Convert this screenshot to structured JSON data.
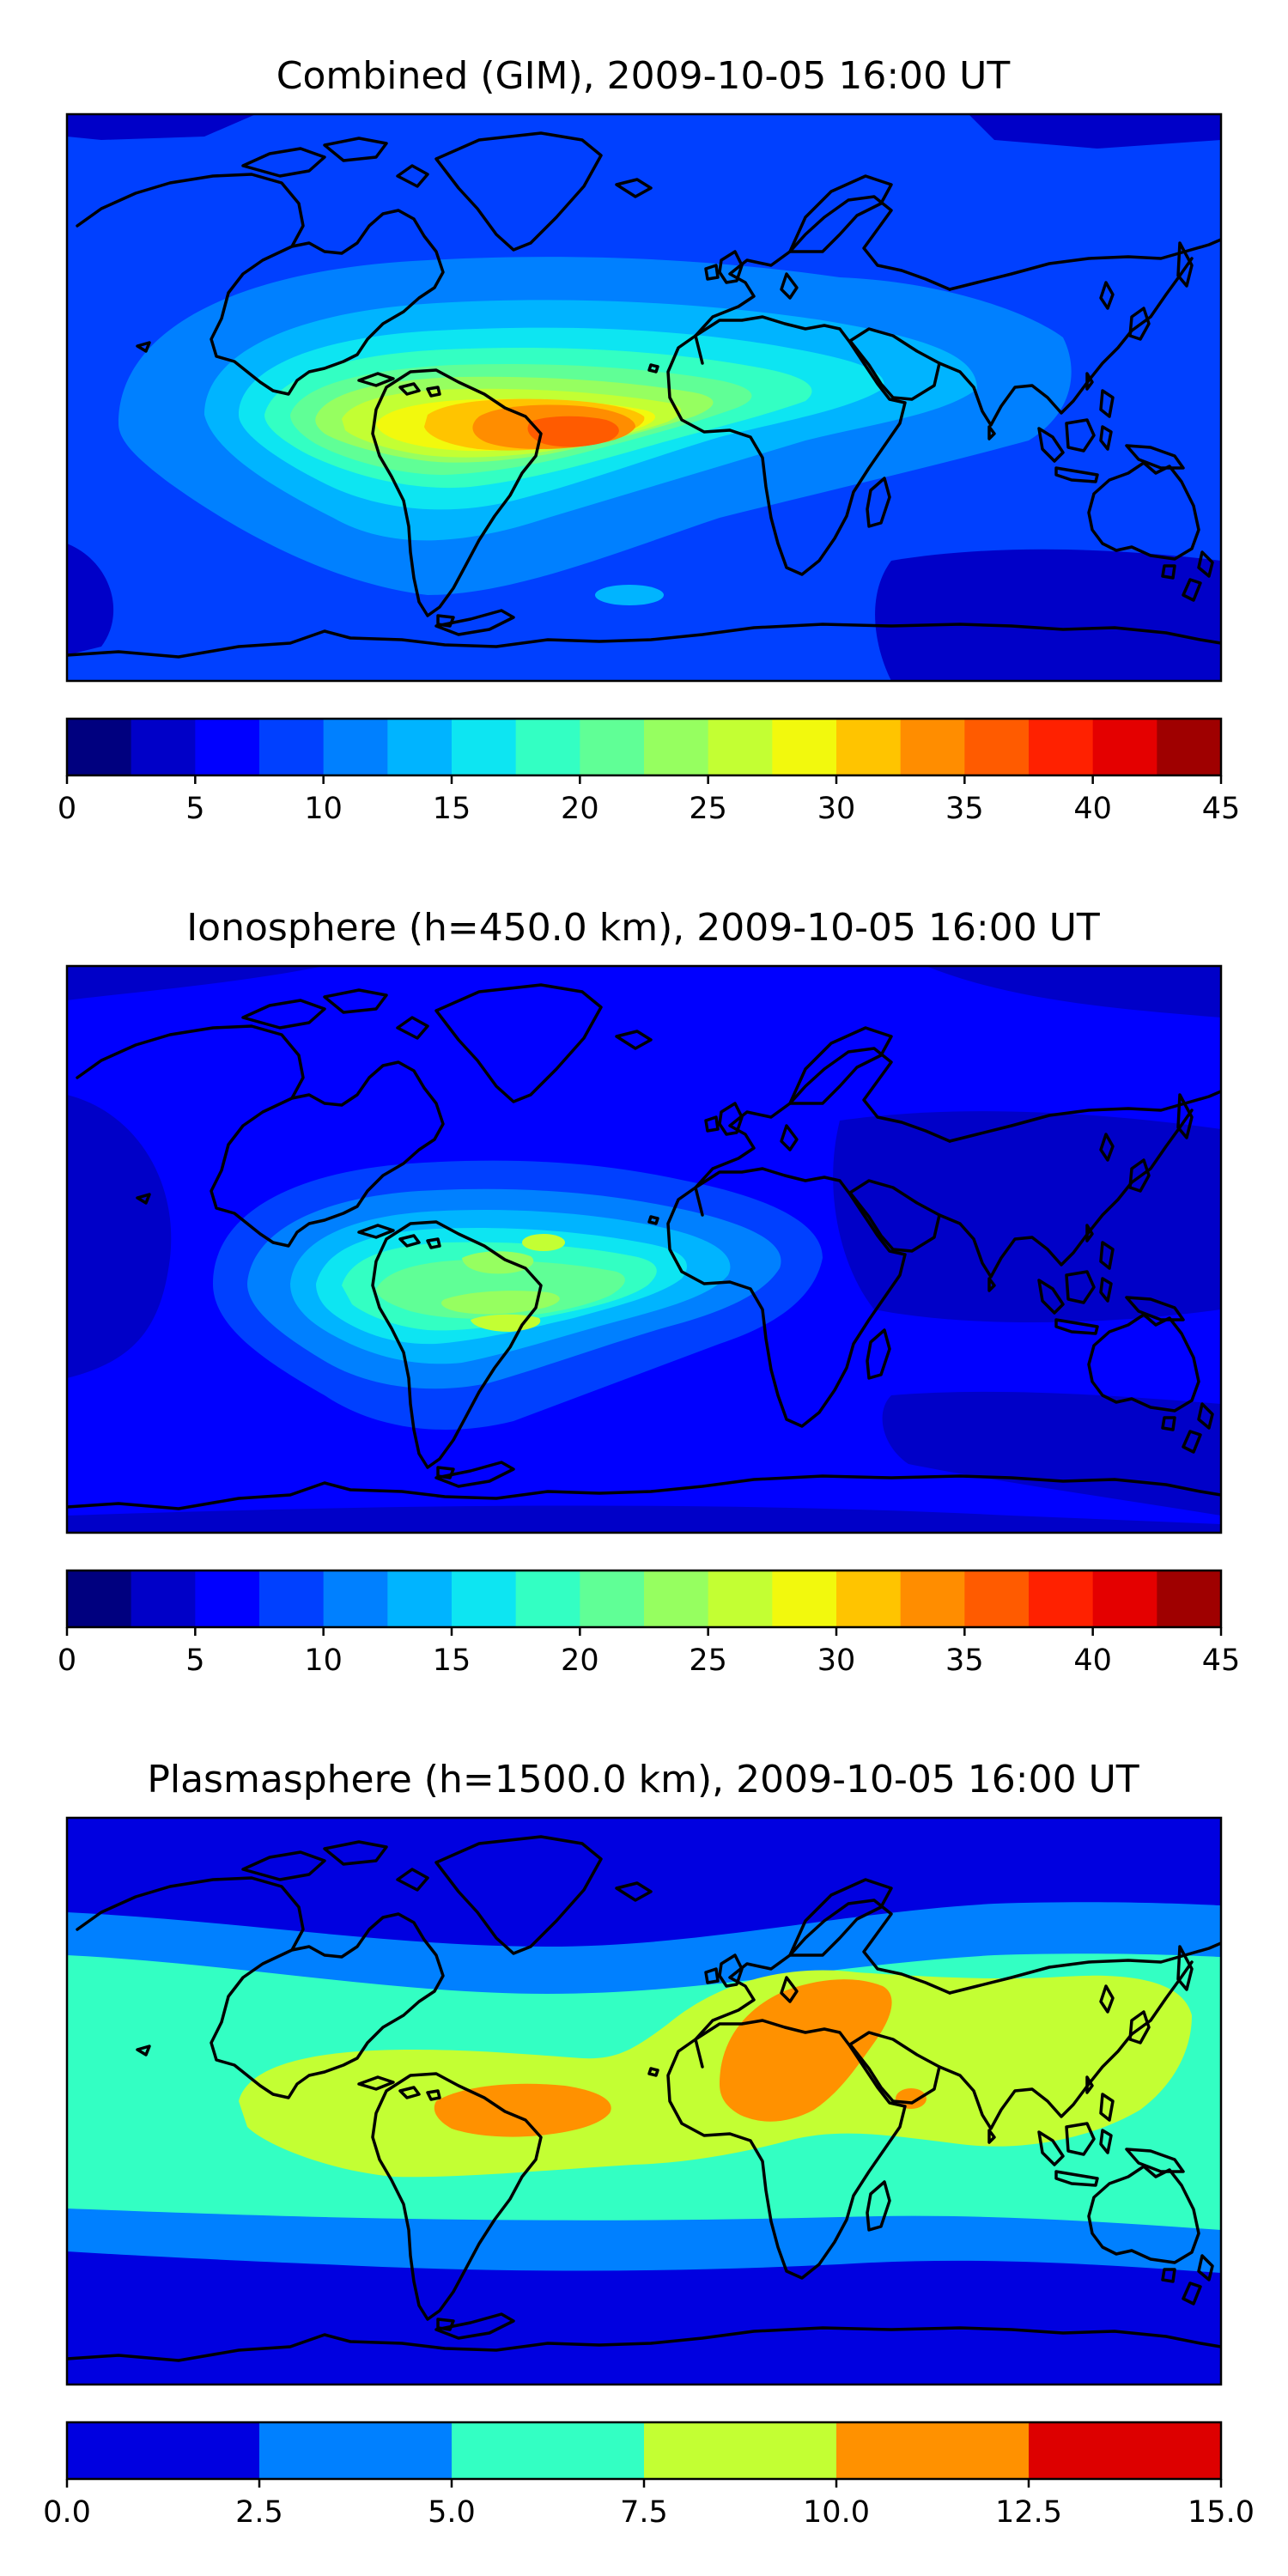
{
  "figure": {
    "panels": [
      {
        "title": "Combined (GIM), 2009-10-05 16:00 UT",
        "colorbar": {
          "levels": [
            0,
            2.5,
            5,
            7.5,
            10,
            12.5,
            15,
            17.5,
            20,
            22.5,
            25,
            27.5,
            30,
            32.5,
            35,
            37.5,
            40,
            42.5,
            45
          ],
          "colors": [
            "#00007f",
            "#0000c8",
            "#0000ff",
            "#0040ff",
            "#0080ff",
            "#00b4ff",
            "#0de5f2",
            "#33ffc3",
            "#60ff96",
            "#96ff60",
            "#c3ff33",
            "#f2f90d",
            "#ffc400",
            "#ff8d00",
            "#ff5b00",
            "#ff2100",
            "#e40000",
            "#9f0000"
          ],
          "tick_labels": [
            "0",
            "5",
            "10",
            "15",
            "20",
            "25",
            "30",
            "35",
            "40",
            "45"
          ]
        }
      },
      {
        "title": "Ionosphere  (h=450.0 km), 2009-10-05 16:00 UT",
        "colorbar": {
          "levels": [
            0,
            2.5,
            5,
            7.5,
            10,
            12.5,
            15,
            17.5,
            20,
            22.5,
            25,
            27.5,
            30,
            32.5,
            35,
            37.5,
            40,
            42.5,
            45
          ],
          "colors": [
            "#00007f",
            "#0000c8",
            "#0000ff",
            "#0040ff",
            "#0080ff",
            "#00b4ff",
            "#0de5f2",
            "#33ffc3",
            "#60ff96",
            "#96ff60",
            "#c3ff33",
            "#f2f90d",
            "#ffc400",
            "#ff8d00",
            "#ff5b00",
            "#ff2100",
            "#e40000",
            "#9f0000"
          ],
          "tick_labels": [
            "0",
            "5",
            "10",
            "15",
            "20",
            "25",
            "30",
            "35",
            "40",
            "45"
          ]
        }
      },
      {
        "title": "Plasmasphere (h=1500.0 km), 2009-10-05 16:00 UT",
        "colorbar": {
          "levels": [
            0,
            2.5,
            5,
            7.5,
            10,
            12.5,
            15
          ],
          "colors": [
            "#0000e0",
            "#0080ff",
            "#33ffc3",
            "#c3ff33",
            "#ff9100",
            "#dd0000"
          ],
          "tick_labels": [
            "0.0",
            "2.5",
            "5.0",
            "7.5",
            "10.0",
            "12.5",
            "15.0"
          ]
        }
      }
    ]
  }
}
